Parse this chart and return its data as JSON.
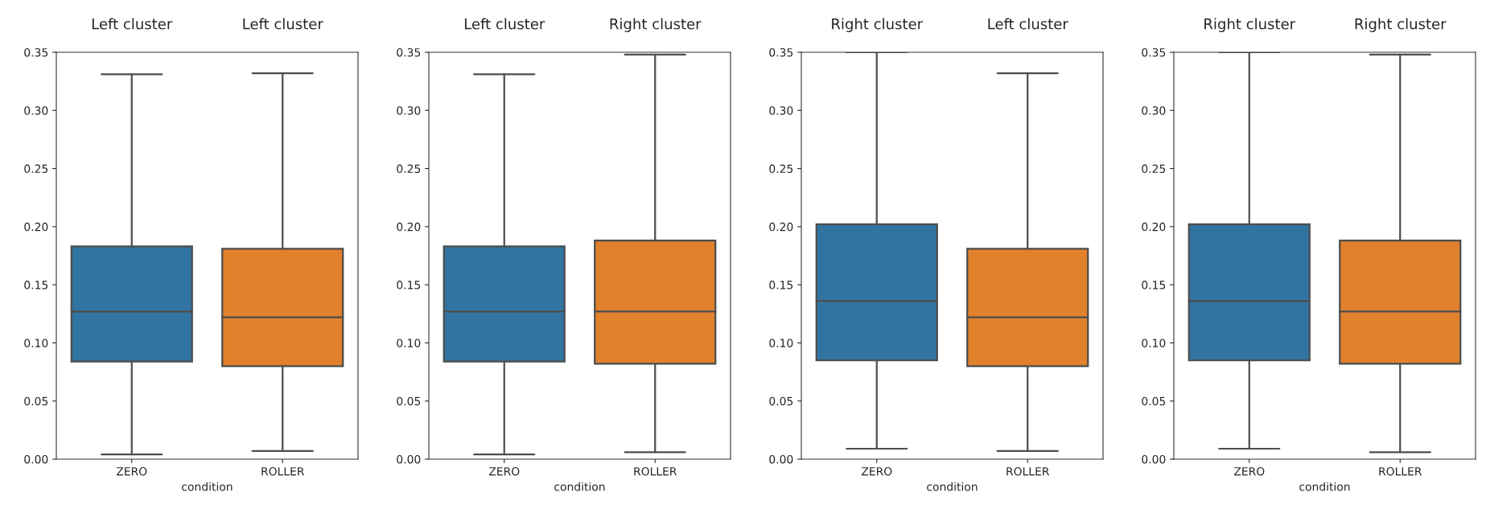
{
  "chart_data": [
    {
      "type": "box",
      "categories": [
        "ZERO",
        "ROLLER"
      ],
      "colors": [
        "#3274a1",
        "#e1812c"
      ],
      "xlabel": "condition",
      "ylim": [
        0,
        0.35
      ],
      "yticks": [
        {
          "value": 0,
          "label": "0.00"
        },
        {
          "value": 0.05,
          "label": "0.05"
        },
        {
          "value": 0.1,
          "label": "0.10"
        },
        {
          "value": 0.15,
          "label": "0.15"
        },
        {
          "value": 0.2,
          "label": "0.20"
        },
        {
          "value": 0.25,
          "label": "0.25"
        },
        {
          "value": 0.3,
          "label": "0.30"
        },
        {
          "value": 0.35,
          "label": "0.35"
        }
      ],
      "grid": false,
      "boxes": [
        {
          "low": 0.004,
          "q1": 0.084,
          "median": 0.127,
          "q3": 0.183,
          "high": 0.331
        },
        {
          "low": 0.007,
          "q1": 0.08,
          "median": 0.122,
          "q3": 0.181,
          "high": 0.332
        }
      ],
      "annotations": [
        "Left cluster",
        "Left cluster"
      ]
    },
    {
      "type": "box",
      "categories": [
        "ZERO",
        "ROLLER"
      ],
      "colors": [
        "#3274a1",
        "#e1812c"
      ],
      "xlabel": "condition",
      "ylim": [
        0,
        0.35
      ],
      "yticks": [
        {
          "value": 0,
          "label": "0.00"
        },
        {
          "value": 0.05,
          "label": "0.05"
        },
        {
          "value": 0.1,
          "label": "0.10"
        },
        {
          "value": 0.15,
          "label": "0.15"
        },
        {
          "value": 0.2,
          "label": "0.20"
        },
        {
          "value": 0.25,
          "label": "0.25"
        },
        {
          "value": 0.3,
          "label": "0.30"
        },
        {
          "value": 0.35,
          "label": "0.35"
        }
      ],
      "grid": false,
      "boxes": [
        {
          "low": 0.004,
          "q1": 0.084,
          "median": 0.127,
          "q3": 0.183,
          "high": 0.331
        },
        {
          "low": 0.006,
          "q1": 0.082,
          "median": 0.127,
          "q3": 0.188,
          "high": 0.348
        }
      ],
      "annotations": [
        "Left cluster",
        "Right cluster"
      ]
    },
    {
      "type": "box",
      "categories": [
        "ZERO",
        "ROLLER"
      ],
      "colors": [
        "#3274a1",
        "#e1812c"
      ],
      "xlabel": "condition",
      "ylim": [
        0,
        0.35
      ],
      "yticks": [
        {
          "value": 0,
          "label": "0.00"
        },
        {
          "value": 0.05,
          "label": "0.05"
        },
        {
          "value": 0.1,
          "label": "0.10"
        },
        {
          "value": 0.15,
          "label": "0.15"
        },
        {
          "value": 0.2,
          "label": "0.20"
        },
        {
          "value": 0.25,
          "label": "0.25"
        },
        {
          "value": 0.3,
          "label": "0.30"
        },
        {
          "value": 0.35,
          "label": "0.35"
        }
      ],
      "grid": false,
      "boxes": [
        {
          "low": 0.009,
          "q1": 0.085,
          "median": 0.136,
          "q3": 0.202,
          "high": 0.35
        },
        {
          "low": 0.007,
          "q1": 0.08,
          "median": 0.122,
          "q3": 0.181,
          "high": 0.332
        }
      ],
      "annotations": [
        "Right cluster",
        "Left cluster"
      ]
    },
    {
      "type": "box",
      "categories": [
        "ZERO",
        "ROLLER"
      ],
      "colors": [
        "#3274a1",
        "#e1812c"
      ],
      "xlabel": "condition",
      "ylim": [
        0,
        0.35
      ],
      "yticks": [
        {
          "value": 0,
          "label": "0.00"
        },
        {
          "value": 0.05,
          "label": "0.05"
        },
        {
          "value": 0.1,
          "label": "0.10"
        },
        {
          "value": 0.15,
          "label": "0.15"
        },
        {
          "value": 0.2,
          "label": "0.20"
        },
        {
          "value": 0.25,
          "label": "0.25"
        },
        {
          "value": 0.3,
          "label": "0.30"
        },
        {
          "value": 0.35,
          "label": "0.35"
        }
      ],
      "grid": false,
      "boxes": [
        {
          "low": 0.009,
          "q1": 0.085,
          "median": 0.136,
          "q3": 0.202,
          "high": 0.35
        },
        {
          "low": 0.006,
          "q1": 0.082,
          "median": 0.127,
          "q3": 0.188,
          "high": 0.348
        }
      ],
      "annotations": [
        "Right cluster",
        "Right cluster"
      ]
    }
  ]
}
